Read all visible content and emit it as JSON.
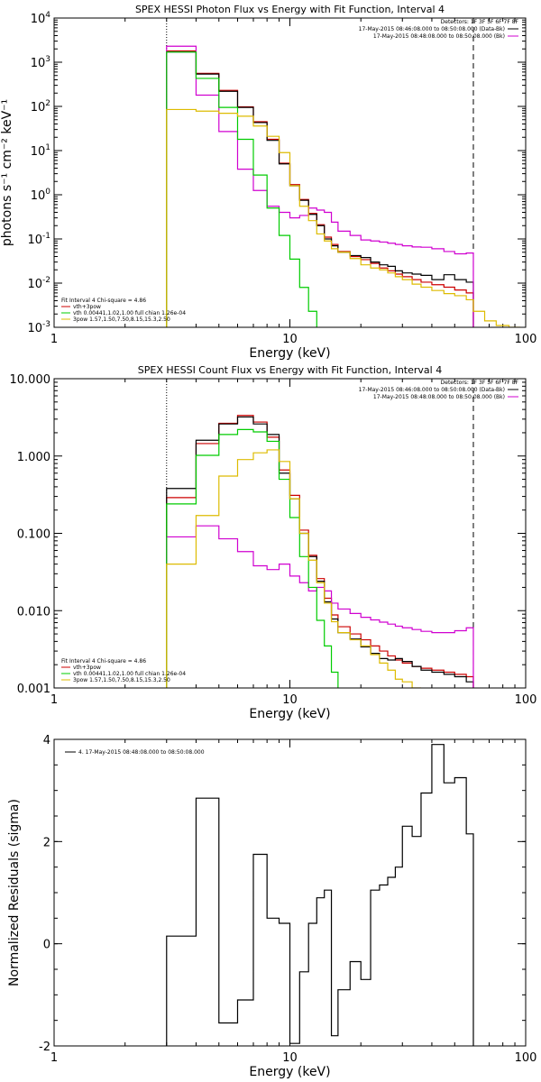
{
  "chart_data": [
    {
      "type": "line",
      "step": true,
      "title": "SPEX HESSI Photon Flux vs Energy with Fit Function, Interval 4",
      "xlabel": "Energy (keV)",
      "ylabel": "photons s⁻¹ cm⁻² keV⁻¹",
      "xscale": "log",
      "yscale": "log",
      "xlim": [
        1,
        100
      ],
      "ylim": [
        0.001,
        10000
      ],
      "x_ticks": [
        {
          "v": 1,
          "label": "1"
        },
        {
          "v": 10,
          "label": "10"
        },
        {
          "v": 100,
          "label": "100"
        }
      ],
      "y_ticks": [
        {
          "v": 0.001,
          "base": "10",
          "exp": "-3"
        },
        {
          "v": 0.01,
          "base": "10",
          "exp": "-2"
        },
        {
          "v": 0.1,
          "base": "10",
          "exp": "-1"
        },
        {
          "v": 1,
          "base": "10",
          "exp": "0"
        },
        {
          "v": 10,
          "base": "10",
          "exp": "1"
        },
        {
          "v": 100,
          "base": "10",
          "exp": "2"
        },
        {
          "v": 1000,
          "base": "10",
          "exp": "3"
        },
        {
          "v": 10000,
          "base": "10",
          "exp": "4"
        }
      ],
      "vlines": [
        {
          "x": 3.0,
          "style": "dotted",
          "color": "#000000"
        },
        {
          "x": 60.0,
          "style": "dashed",
          "color": "#000000"
        }
      ],
      "legend_top": [
        {
          "text": "Detectors: 1F 3F 5F 6F 7F 8F",
          "color": ""
        },
        {
          "text": "17-May-2015 08:46:08.000 to 08:50:08.000 (Data-Bk)",
          "color": "#000000"
        },
        {
          "text": "17-May-2015 08:48:08.000 to 08:50:08.000 (Bk)",
          "color": "#d000d0"
        }
      ],
      "legend_bottom": [
        {
          "text": "Fit Interval 4   Chi-square = 4.86",
          "color": ""
        },
        {
          "text": "vth+3pow",
          "color": "#cc0000"
        },
        {
          "text": "vth 0.00441,1.02,1.00   full chian 1.26e-04",
          "color": "#00cc00"
        },
        {
          "text": "3pow  1.57,1.50,7.50,8.15,15.3,2.50",
          "color": "#ddbb00"
        }
      ],
      "edges": [
        3,
        4,
        5,
        6,
        7,
        8,
        9,
        10,
        11,
        12,
        13,
        14,
        15,
        16,
        18,
        20,
        22,
        24,
        26,
        28,
        30,
        33,
        36,
        40,
        45,
        50,
        56,
        60,
        67,
        75,
        85,
        95
      ],
      "series": [
        {
          "name": "vth+3pow",
          "color": "#cc0000",
          "values": [
            1800,
            560,
            230,
            98,
            45,
            18,
            5.2,
            1.7,
            0.78,
            0.38,
            0.21,
            0.11,
            0.075,
            0.052,
            0.04,
            0.034,
            0.028,
            0.022,
            0.019,
            0.016,
            0.014,
            0.012,
            0.0105,
            0.0092,
            0.0081,
            0.007,
            0.006
          ]
        },
        {
          "name": "Data-Bk",
          "color": "#000000",
          "values": [
            1700,
            540,
            220,
            95,
            43,
            17,
            5.0,
            1.6,
            0.75,
            0.36,
            0.2,
            0.1,
            0.07,
            0.05,
            0.042,
            0.038,
            0.03,
            0.026,
            0.024,
            0.019,
            0.017,
            0.016,
            0.015,
            0.012,
            0.0155,
            0.012,
            0.0105
          ]
        },
        {
          "name": "Bk",
          "color": "#d000d0",
          "values": [
            2300,
            180,
            27,
            3.8,
            1.25,
            0.55,
            0.4,
            0.3,
            0.34,
            0.5,
            0.45,
            0.4,
            0.24,
            0.15,
            0.12,
            0.095,
            0.09,
            0.085,
            0.08,
            0.075,
            0.07,
            0.066,
            0.065,
            0.06,
            0.052,
            0.046,
            0.048
          ]
        },
        {
          "name": "vth",
          "color": "#00cc00",
          "values": [
            1700,
            430,
            95,
            18,
            2.8,
            0.5,
            0.12,
            0.035,
            0.008,
            0.0023,
            0.0009
          ]
        },
        {
          "name": "3pow",
          "color": "#ddbb00",
          "values": [
            85,
            78,
            70,
            60,
            36,
            21,
            9.0,
            1.6,
            0.55,
            0.26,
            0.13,
            0.09,
            0.06,
            0.05,
            0.036,
            0.026,
            0.022,
            0.02,
            0.017,
            0.014,
            0.012,
            0.0095,
            0.0081,
            0.0068,
            0.0058,
            0.0052,
            0.0042,
            0.0023,
            0.0014,
            0.0011,
            0.001
          ]
        }
      ]
    },
    {
      "type": "line",
      "step": true,
      "title": "SPEX HESSI Count Flux vs Energy with Fit Function, Interval 4",
      "xlabel": "Energy (keV)",
      "ylabel": "",
      "xscale": "log",
      "yscale": "log",
      "xlim": [
        1,
        100
      ],
      "ylim": [
        0.001,
        10
      ],
      "x_ticks": [
        {
          "v": 1,
          "label": "1"
        },
        {
          "v": 10,
          "label": "10"
        },
        {
          "v": 100,
          "label": "100"
        }
      ],
      "y_ticks": [
        {
          "v": 0.001,
          "label": "0.001"
        },
        {
          "v": 0.01,
          "label": "0.010"
        },
        {
          "v": 0.1,
          "label": "0.100"
        },
        {
          "v": 1,
          "label": "1.000"
        },
        {
          "v": 10,
          "label": "10.000"
        }
      ],
      "vlines": [
        {
          "x": 3.0,
          "style": "dotted",
          "color": "#000000"
        },
        {
          "x": 60.0,
          "style": "dashed",
          "color": "#000000"
        }
      ],
      "legend_top": [
        {
          "text": "Detectors: 1F 3F 5F 6F 7F 8F",
          "color": ""
        },
        {
          "text": "17-May-2015 08:46:08.000 to 08:50:08.000 (Data-Bk)",
          "color": "#000000"
        },
        {
          "text": "17-May-2015 08:48:08.000 to 08:50:08.000 (Bk)",
          "color": "#d000d0"
        }
      ],
      "legend_bottom": [
        {
          "text": "Fit Interval 4   Chi-square = 4.86",
          "color": ""
        },
        {
          "text": "vth+3pow",
          "color": "#cc0000"
        },
        {
          "text": "vth 0.00441,1.02,1.00   full chian 1.26e-04",
          "color": "#00cc00"
        },
        {
          "text": "3pow  1.57,1.50,7.50,8.15,15.3,2.50",
          "color": "#ddbb00"
        }
      ],
      "edges": [
        3,
        4,
        5,
        6,
        7,
        8,
        9,
        10,
        11,
        12,
        13,
        14,
        15,
        16,
        18,
        20,
        22,
        24,
        26,
        28,
        30,
        33,
        36,
        40,
        45,
        50,
        56,
        60,
        67,
        75,
        85,
        95
      ],
      "series": [
        {
          "name": "vth+3pow",
          "color": "#cc0000",
          "values": [
            0.29,
            1.45,
            2.65,
            3.35,
            2.75,
            1.75,
            0.66,
            0.31,
            0.11,
            0.052,
            0.026,
            0.0145,
            0.0088,
            0.0062,
            0.005,
            0.0042,
            0.0035,
            0.003,
            0.0026,
            0.0023,
            0.0021,
            0.0019,
            0.0018,
            0.0017,
            0.0016,
            0.0015,
            0.0014
          ]
        },
        {
          "name": "Data-Bk",
          "color": "#000000",
          "values": [
            0.38,
            1.6,
            2.6,
            3.2,
            2.6,
            1.9,
            0.6,
            0.28,
            0.1,
            0.05,
            0.024,
            0.013,
            0.0078,
            0.0052,
            0.0043,
            0.0034,
            0.0028,
            0.0024,
            0.0023,
            0.0024,
            0.0022,
            0.0019,
            0.0017,
            0.0016,
            0.0015,
            0.0014,
            0.0012
          ]
        },
        {
          "name": "Bk",
          "color": "#d000d0",
          "values": [
            0.09,
            0.125,
            0.085,
            0.058,
            0.038,
            0.034,
            0.04,
            0.028,
            0.023,
            0.018,
            0.02,
            0.018,
            0.0125,
            0.0105,
            0.0092,
            0.0082,
            0.0076,
            0.0071,
            0.0067,
            0.0063,
            0.006,
            0.0057,
            0.0054,
            0.0052,
            0.0052,
            0.0055,
            0.006
          ]
        },
        {
          "name": "vth",
          "color": "#00cc00",
          "values": [
            0.24,
            1.02,
            1.9,
            2.2,
            2.05,
            1.55,
            0.5,
            0.16,
            0.05,
            0.02,
            0.0075,
            0.0035,
            0.0016,
            0.0009
          ]
        },
        {
          "name": "3pow",
          "color": "#ddbb00",
          "values": [
            0.04,
            0.17,
            0.55,
            0.9,
            1.1,
            1.2,
            0.85,
            0.28,
            0.1,
            0.045,
            0.023,
            0.0125,
            0.0072,
            0.0052,
            0.0042,
            0.0035,
            0.0027,
            0.0021,
            0.0017,
            0.0013,
            0.0012,
            0.001
          ]
        }
      ]
    },
    {
      "type": "line",
      "step": true,
      "title": "",
      "xlabel": "Energy (keV)",
      "ylabel": "Normalized Residuals (sigma)",
      "xscale": "log",
      "yscale": "linear",
      "xlim": [
        1,
        100
      ],
      "ylim": [
        -2,
        4
      ],
      "x_ticks": [
        {
          "v": 1,
          "label": "1"
        },
        {
          "v": 10,
          "label": "10"
        },
        {
          "v": 100,
          "label": "100"
        }
      ],
      "y_ticks": [
        {
          "v": -2,
          "label": "-2"
        },
        {
          "v": 0,
          "label": "0"
        },
        {
          "v": 2,
          "label": "2"
        },
        {
          "v": 4,
          "label": "4"
        }
      ],
      "vlines": [],
      "legend_top": [
        {
          "text": "4. 17-May-2015 08:48:08.000 to 08:50:08.000",
          "color": "#000000"
        }
      ],
      "legend_bottom": [],
      "edges": [
        3,
        4,
        5,
        6,
        7,
        8,
        9,
        10,
        11,
        12,
        13,
        14,
        15,
        16,
        18,
        20,
        22,
        24,
        26,
        28,
        30,
        33,
        36,
        40,
        45,
        50,
        56,
        60
      ],
      "series": [
        {
          "name": "",
          "color": "#000000",
          "values": [
            0.15,
            2.85,
            -1.55,
            -1.1,
            1.75,
            0.5,
            0.4,
            -1.95,
            -0.55,
            0.4,
            0.9,
            1.05,
            -1.8,
            -0.9,
            -0.35,
            -0.7,
            1.05,
            1.15,
            1.3,
            1.5,
            2.3,
            2.1,
            2.95,
            3.9,
            3.15,
            3.25,
            2.15
          ]
        }
      ]
    }
  ]
}
